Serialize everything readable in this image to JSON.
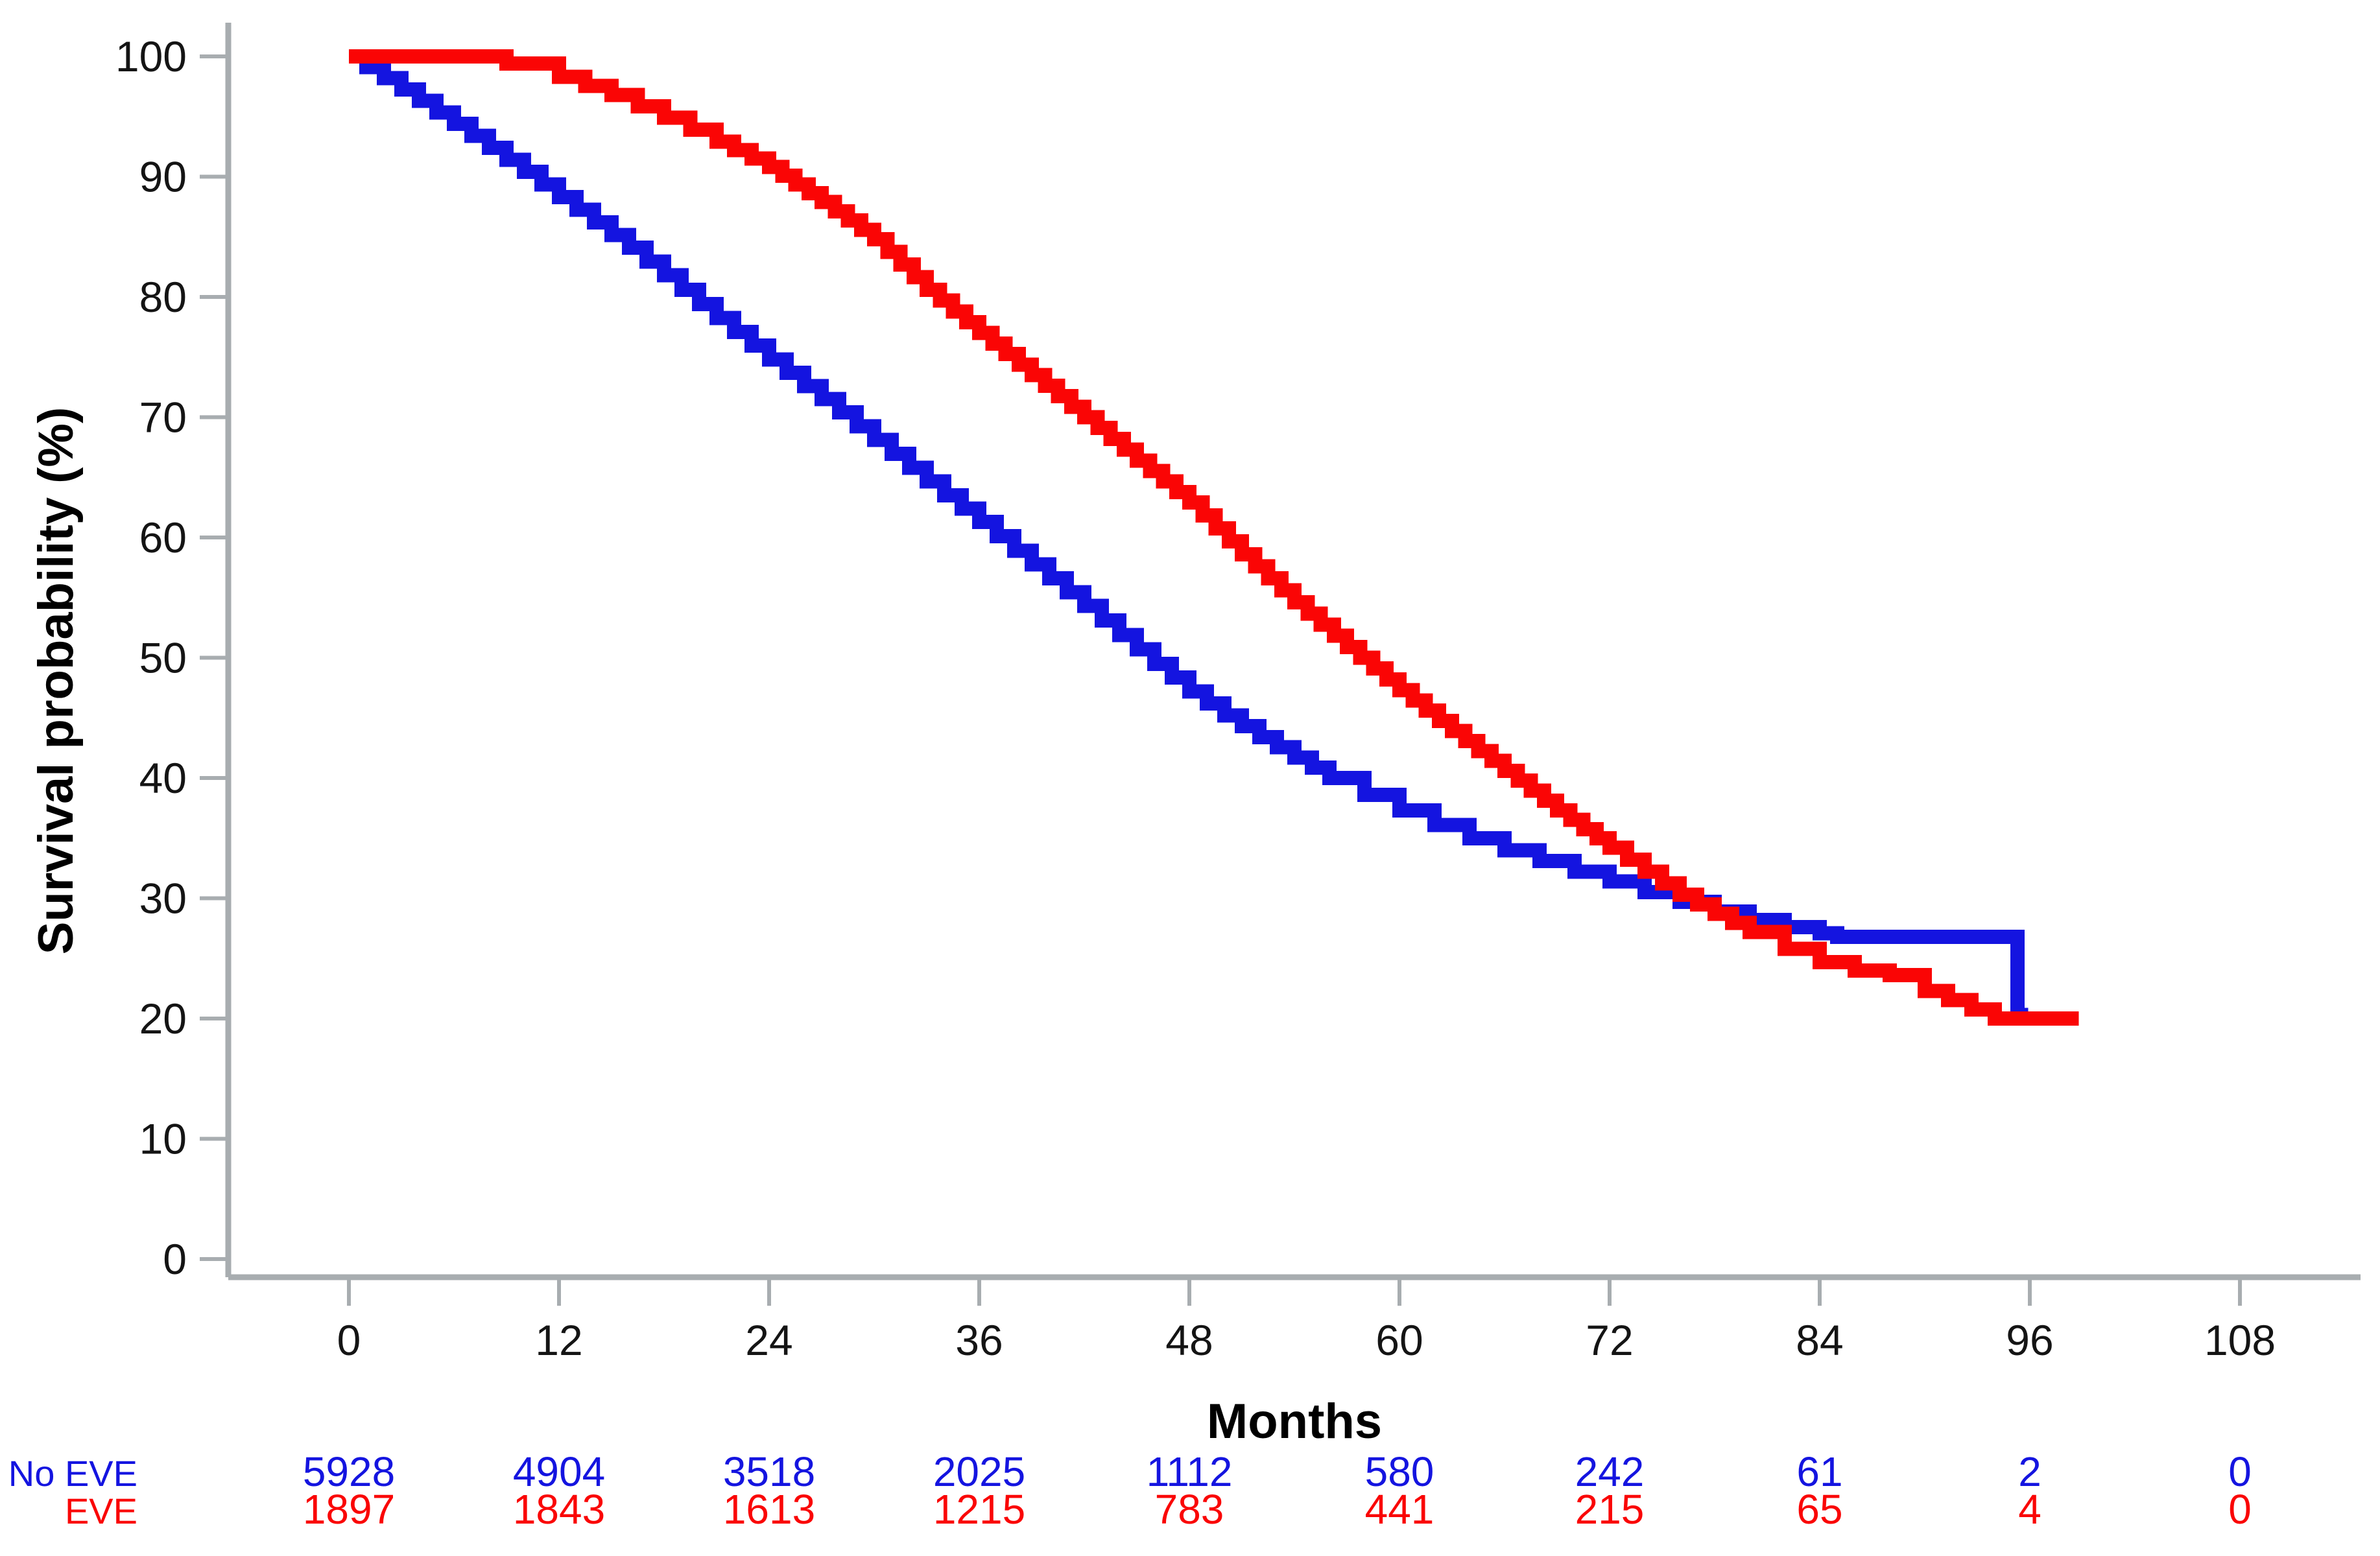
{
  "chart_data": {
    "type": "line",
    "subtype": "kaplan-meier-step-curves",
    "title": "",
    "xlabel": "Months",
    "ylabel": "Survival probability (%)",
    "xlim": [
      0,
      114
    ],
    "ylim": [
      0,
      100
    ],
    "x_ticks": [
      0,
      12,
      24,
      36,
      48,
      60,
      72,
      84,
      96,
      108
    ],
    "y_ticks": [
      0,
      10,
      20,
      30,
      40,
      50,
      60,
      70,
      80,
      90,
      100
    ],
    "grid": false,
    "legend_position": "none",
    "series": [
      {
        "name": "No EVE",
        "color": "#1414e0",
        "points": [
          [
            0,
            100
          ],
          [
            2,
            98.2
          ],
          [
            4,
            96.3
          ],
          [
            6,
            94.4
          ],
          [
            8,
            92.4
          ],
          [
            10,
            90.4
          ],
          [
            12,
            88.3
          ],
          [
            14,
            86.2
          ],
          [
            16,
            84.1
          ],
          [
            18,
            81.8
          ],
          [
            20,
            79.4
          ],
          [
            22,
            77.1
          ],
          [
            24,
            74.8
          ],
          [
            26,
            72.6
          ],
          [
            28,
            70.4
          ],
          [
            30,
            68.1
          ],
          [
            32,
            65.8
          ],
          [
            34,
            63.5
          ],
          [
            36,
            61.3
          ],
          [
            38,
            58.9
          ],
          [
            40,
            56.6
          ],
          [
            42,
            54.3
          ],
          [
            44,
            51.9
          ],
          [
            46,
            49.5
          ],
          [
            48,
            47.2
          ],
          [
            50,
            45.2
          ],
          [
            52,
            43.4
          ],
          [
            54,
            41.7
          ],
          [
            56,
            40.0
          ],
          [
            58,
            38.6
          ],
          [
            60,
            37.3
          ],
          [
            62,
            36.1
          ],
          [
            64,
            35.0
          ],
          [
            66,
            34.0
          ],
          [
            68,
            33.1
          ],
          [
            70,
            32.2
          ],
          [
            72,
            31.4
          ],
          [
            74,
            30.5
          ],
          [
            76,
            29.7
          ],
          [
            78,
            28.9
          ],
          [
            80,
            28.2
          ],
          [
            82,
            27.6
          ],
          [
            84,
            27.1
          ],
          [
            85,
            26.8
          ],
          [
            95.3,
            26.8
          ],
          [
            95.3,
            20.3
          ],
          [
            95.9,
            20.3
          ]
        ]
      },
      {
        "name": "EVE",
        "color": "#fa0505",
        "points": [
          [
            0,
            100
          ],
          [
            7,
            100
          ],
          [
            9,
            99.4
          ],
          [
            12,
            98.3
          ],
          [
            15,
            96.8
          ],
          [
            18,
            94.9
          ],
          [
            21,
            92.9
          ],
          [
            24,
            90.8
          ],
          [
            27,
            87.9
          ],
          [
            30,
            84.8
          ],
          [
            33,
            80.6
          ],
          [
            36,
            77.0
          ],
          [
            39,
            73.5
          ],
          [
            42,
            70.0
          ],
          [
            45,
            66.4
          ],
          [
            48,
            62.9
          ],
          [
            51,
            58.6
          ],
          [
            54,
            54.6
          ],
          [
            57,
            50.9
          ],
          [
            60,
            47.3
          ],
          [
            63,
            43.9
          ],
          [
            66,
            40.6
          ],
          [
            69,
            37.3
          ],
          [
            72,
            34.2
          ],
          [
            74,
            32.2
          ],
          [
            76,
            30.3
          ],
          [
            78,
            28.7
          ],
          [
            80,
            27.2
          ],
          [
            82,
            25.8
          ],
          [
            84,
            24.7
          ],
          [
            86,
            24.0
          ],
          [
            88,
            23.6
          ],
          [
            90,
            22.3
          ],
          [
            94,
            20.0
          ],
          [
            98.8,
            20.0
          ]
        ]
      }
    ],
    "risk_table": {
      "months": [
        0,
        12,
        24,
        36,
        48,
        60,
        72,
        84,
        96,
        108
      ],
      "rows": [
        {
          "label": "No EVE",
          "color": "#1414e0",
          "counts": [
            "5928",
            "4904",
            "3518",
            "2025",
            "1112",
            "580",
            "242",
            "61",
            "2",
            "0"
          ]
        },
        {
          "label": "EVE",
          "color": "#fa0505",
          "counts": [
            "1897",
            "1843",
            "1613",
            "1215",
            "783",
            "441",
            "215",
            "65",
            "4",
            "0"
          ]
        }
      ]
    }
  },
  "colors": {
    "no_eve_blue": "#1414e0",
    "eve_red": "#fa0505",
    "axis_gray": "#a8adb0",
    "text_black": "#141414"
  }
}
